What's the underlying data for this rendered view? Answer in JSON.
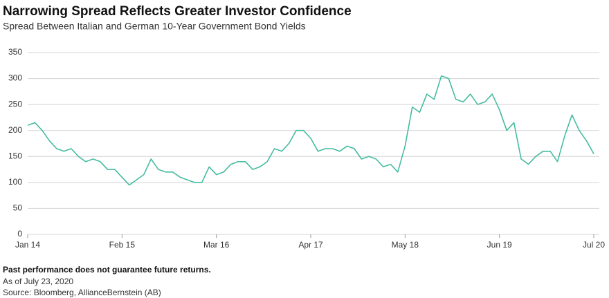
{
  "chart_data": {
    "type": "line",
    "title": "Narrowing Spread Reflects Greater Investor Confidence",
    "subtitle": "Spread Between Italian and German 10-Year Government Bond Yields",
    "x": [
      "2014-01",
      "2014-02",
      "2014-03",
      "2014-04",
      "2014-05",
      "2014-06",
      "2014-07",
      "2014-08",
      "2014-09",
      "2014-10",
      "2014-11",
      "2014-12",
      "2015-01",
      "2015-02",
      "2015-03",
      "2015-04",
      "2015-05",
      "2015-06",
      "2015-07",
      "2015-08",
      "2015-09",
      "2015-10",
      "2015-11",
      "2015-12",
      "2016-01",
      "2016-02",
      "2016-03",
      "2016-04",
      "2016-05",
      "2016-06",
      "2016-07",
      "2016-08",
      "2016-09",
      "2016-10",
      "2016-11",
      "2016-12",
      "2017-01",
      "2017-02",
      "2017-03",
      "2017-04",
      "2017-05",
      "2017-06",
      "2017-07",
      "2017-08",
      "2017-09",
      "2017-10",
      "2017-11",
      "2017-12",
      "2018-01",
      "2018-02",
      "2018-03",
      "2018-04",
      "2018-05",
      "2018-06",
      "2018-07",
      "2018-08",
      "2018-09",
      "2018-10",
      "2018-11",
      "2018-12",
      "2019-01",
      "2019-02",
      "2019-03",
      "2019-04",
      "2019-05",
      "2019-06",
      "2019-07",
      "2019-08",
      "2019-09",
      "2019-10",
      "2019-11",
      "2019-12",
      "2020-01",
      "2020-02",
      "2020-03",
      "2020-04",
      "2020-05",
      "2020-06",
      "2020-07"
    ],
    "series": [
      {
        "name": "Spread",
        "color": "#45bba0",
        "values": [
          210,
          215,
          200,
          180,
          165,
          160,
          165,
          150,
          140,
          145,
          140,
          125,
          125,
          110,
          95,
          105,
          115,
          145,
          125,
          120,
          120,
          110,
          105,
          100,
          100,
          130,
          115,
          120,
          135,
          140,
          140,
          125,
          130,
          140,
          165,
          160,
          175,
          200,
          200,
          185,
          160,
          165,
          165,
          160,
          170,
          165,
          145,
          150,
          145,
          130,
          135,
          120,
          170,
          245,
          235,
          270,
          260,
          305,
          300,
          260,
          255,
          270,
          250,
          255,
          270,
          240,
          200,
          215,
          145,
          135,
          150,
          160,
          160,
          140,
          190,
          230,
          200,
          180,
          155
        ]
      }
    ],
    "xlim": [
      "2014-01",
      "2020-07"
    ],
    "xticks": [
      {
        "value": "2014-01",
        "label": "Jan 14"
      },
      {
        "value": "2015-02",
        "label": "Feb 15"
      },
      {
        "value": "2016-03",
        "label": "Mar 16"
      },
      {
        "value": "2017-04",
        "label": "Apr 17"
      },
      {
        "value": "2018-05",
        "label": "May 18"
      },
      {
        "value": "2019-06",
        "label": "Jun 19"
      },
      {
        "value": "2020-07",
        "label": "Jul 20"
      }
    ],
    "ylim": [
      0,
      350
    ],
    "yticks": [
      0,
      50,
      100,
      150,
      200,
      250,
      300,
      350
    ],
    "grid": true
  },
  "notes": {
    "disclaimer": "Past performance does not guarantee future returns.",
    "date": "As of July 23, 2020",
    "source": "Source: Bloomberg, AllianceBernstein (AB)"
  }
}
